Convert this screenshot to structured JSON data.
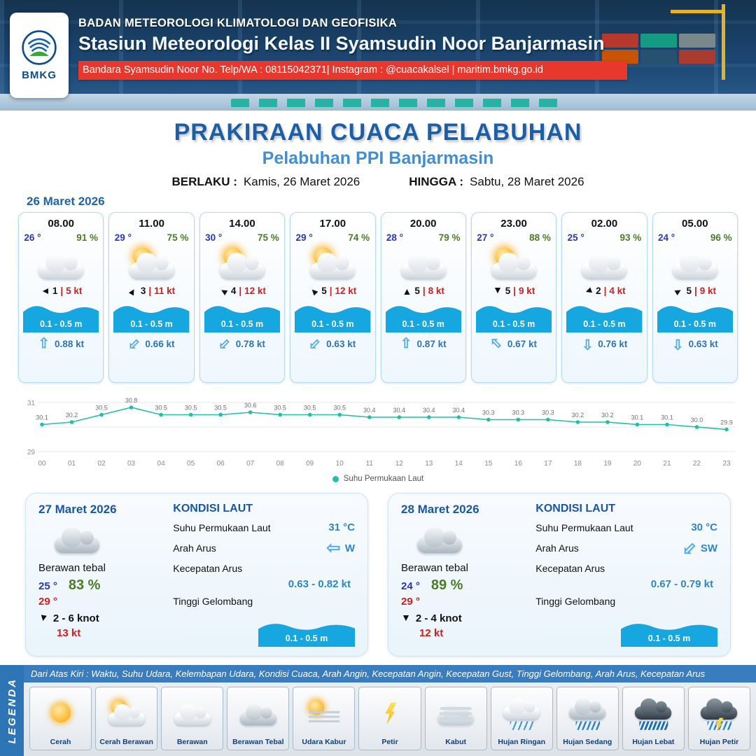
{
  "header": {
    "agency": "BADAN METEOROLOGI KLIMATOLOGI DAN GEOFISIKA",
    "station": "Stasiun Meteorologi Kelas II Syamsudin Noor Banjarmasin",
    "contact": "Bandara Syamsudin Noor No. Telp/WA : 08115042371| Instagram : @cuacakalsel | maritim.bmkg.go.id",
    "logo_text": "BMKG"
  },
  "title": {
    "main": "PRAKIRAAN CUACA PELABUHAN",
    "subtitle": "Pelabuhan PPI Banjarmasin",
    "valid_from_label": "BERLAKU :",
    "valid_from": "Kamis, 26 Maret 2026",
    "valid_to_label": "HINGGA :",
    "valid_to": "Sabtu, 28 Maret 2026"
  },
  "forecast_date": "26 Maret 2026",
  "colors": {
    "accent_blue": "#2e75b6",
    "title_blue": "#1c5fa5",
    "subtitle_blue": "#3f8fd2",
    "red": "#cf1f1f",
    "green": "#4a7d21",
    "wave_blue": "#16a7e0",
    "line_teal": "#20bfa9",
    "header_red_bar": "#e8372c"
  },
  "cards": [
    {
      "time": "08.00",
      "temp": "26 °",
      "humidity": "91 %",
      "weather": "cloudy",
      "wind_speed": "1",
      "gust": "5 kt",
      "wind_deg": 270,
      "wave": "0.1 - 0.5 m",
      "current_speed": "0.88 kt",
      "current_deg": 0
    },
    {
      "time": "11.00",
      "temp": "29 °",
      "humidity": "75 %",
      "weather": "partly-cloudy",
      "wind_speed": "3",
      "gust": "11 kt",
      "wind_deg": 30,
      "wave": "0.1 - 0.5 m",
      "current_speed": "0.66 kt",
      "current_deg": 225
    },
    {
      "time": "14.00",
      "temp": "30 °",
      "humidity": "75 %",
      "weather": "partly-cloudy",
      "wind_speed": "4",
      "gust": "12 kt",
      "wind_deg": 300,
      "wave": "0.1 - 0.5 m",
      "current_speed": "0.78 kt",
      "current_deg": 225
    },
    {
      "time": "17.00",
      "temp": "29 °",
      "humidity": "74 %",
      "weather": "partly-cloudy",
      "wind_speed": "5",
      "gust": "12 kt",
      "wind_deg": 315,
      "wave": "0.1 - 0.5 m",
      "current_speed": "0.63 kt",
      "current_deg": 225
    },
    {
      "time": "20.00",
      "temp": "28 °",
      "humidity": "79 %",
      "weather": "cloudy",
      "wind_speed": "5",
      "gust": "8 kt",
      "wind_deg": 0,
      "wave": "0.1 - 0.5 m",
      "current_speed": "0.87 kt",
      "current_deg": 0
    },
    {
      "time": "23.00",
      "temp": "27 °",
      "humidity": "88 %",
      "weather": "partly-cloudy",
      "wind_speed": "5",
      "gust": "9 kt",
      "wind_deg": 180,
      "wave": "0.1 - 0.5 m",
      "current_speed": "0.67 kt",
      "current_deg": 315
    },
    {
      "time": "02.00",
      "temp": "25 °",
      "humidity": "93 %",
      "weather": "cloudy",
      "wind_speed": "2",
      "gust": "4 kt",
      "wind_deg": 250,
      "wave": "0.1 - 0.5 m",
      "current_speed": "0.76 kt",
      "current_deg": 180
    },
    {
      "time": "05.00",
      "temp": "24 °",
      "humidity": "96 %",
      "weather": "cloudy",
      "wind_speed": "5",
      "gust": "9 kt",
      "wind_deg": 60,
      "wave": "0.1 - 0.5 m",
      "current_speed": "0.63 kt",
      "current_deg": 180
    }
  ],
  "chart_data": {
    "type": "line",
    "legend_label": "Suhu Permukaan Laut",
    "x": [
      "00",
      "01",
      "02",
      "03",
      "04",
      "05",
      "06",
      "07",
      "08",
      "09",
      "10",
      "11",
      "12",
      "13",
      "14",
      "15",
      "16",
      "17",
      "18",
      "19",
      "20",
      "21",
      "22",
      "23"
    ],
    "series": [
      {
        "name": "Suhu Permukaan Laut",
        "values": [
          30.1,
          30.2,
          30.5,
          30.8,
          30.5,
          30.5,
          30.5,
          30.6,
          30.5,
          30.5,
          30.5,
          30.4,
          30.4,
          30.4,
          30.4,
          30.3,
          30.3,
          30.3,
          30.2,
          30.2,
          30.1,
          30.1,
          30.0,
          29.9
        ]
      }
    ],
    "ylim": [
      29,
      31
    ],
    "line_color": "#20bfa9",
    "grid": true,
    "legend_position": "bottom"
  },
  "day_panels": [
    {
      "date": "27 Maret 2026",
      "condition": "Berawan tebal",
      "temp_min": "25 °",
      "humidity": "83 %",
      "temp_max": "29 °",
      "wind_range": "2 - 6 knot",
      "wind_deg": 190,
      "gust": "13 kt",
      "sea_title": "KONDISI LAUT",
      "sst_label": "Suhu Permukaan Laut",
      "sst": "31 °C",
      "current_dir_label": "Arah Arus",
      "current_dir": "W",
      "current_deg": 270,
      "current_speed_label": "Kecepatan Arus",
      "current_speed": "0.63 - 0.82 kt",
      "wave_label": "Tinggi Gelombang",
      "wave": "0.1 - 0.5 m"
    },
    {
      "date": "28 Maret 2026",
      "condition": "Berawan tebal",
      "temp_min": "24 °",
      "humidity": "89 %",
      "temp_max": "29 °",
      "wind_range": "2 - 4 knot",
      "wind_deg": 180,
      "gust": "12 kt",
      "sea_title": "KONDISI LAUT",
      "sst_label": "Suhu Permukaan Laut",
      "sst": "30 °C",
      "current_dir_label": "Arah Arus",
      "current_dir": "SW",
      "current_deg": 225,
      "current_speed_label": "Kecepatan Arus",
      "current_speed": "0.67 - 0.79 kt",
      "wave_label": "Tinggi Gelombang",
      "wave": "0.1 - 0.5 m"
    }
  ],
  "legend": {
    "side_label": "LEGENDA",
    "description": "Dari Atas Kiri : Waktu, Suhu Udara, Kelembapan Udara, Kondisi Cuaca, Arah Angin, Kecepatan Angin, Kecepatan Gust, Tinggi Gelombang, Arah Arus, Kecepatan Arus",
    "items": [
      {
        "label": "Cerah",
        "icon": "sun"
      },
      {
        "label": "Cerah Berawan",
        "icon": "sun-cloud"
      },
      {
        "label": "Berawan",
        "icon": "cloud"
      },
      {
        "label": "Berawan Tebal",
        "icon": "cloud-thick"
      },
      {
        "label": "Udara Kabur",
        "icon": "haze"
      },
      {
        "label": "Petir",
        "icon": "lightning"
      },
      {
        "label": "Kabut",
        "icon": "fog"
      },
      {
        "label": "Hujan Ringan",
        "icon": "rain-light"
      },
      {
        "label": "Hujan Sedang",
        "icon": "rain-moderate"
      },
      {
        "label": "Hujan Lebat",
        "icon": "rain-heavy"
      },
      {
        "label": "Hujan Petir",
        "icon": "thunderstorm"
      }
    ]
  }
}
